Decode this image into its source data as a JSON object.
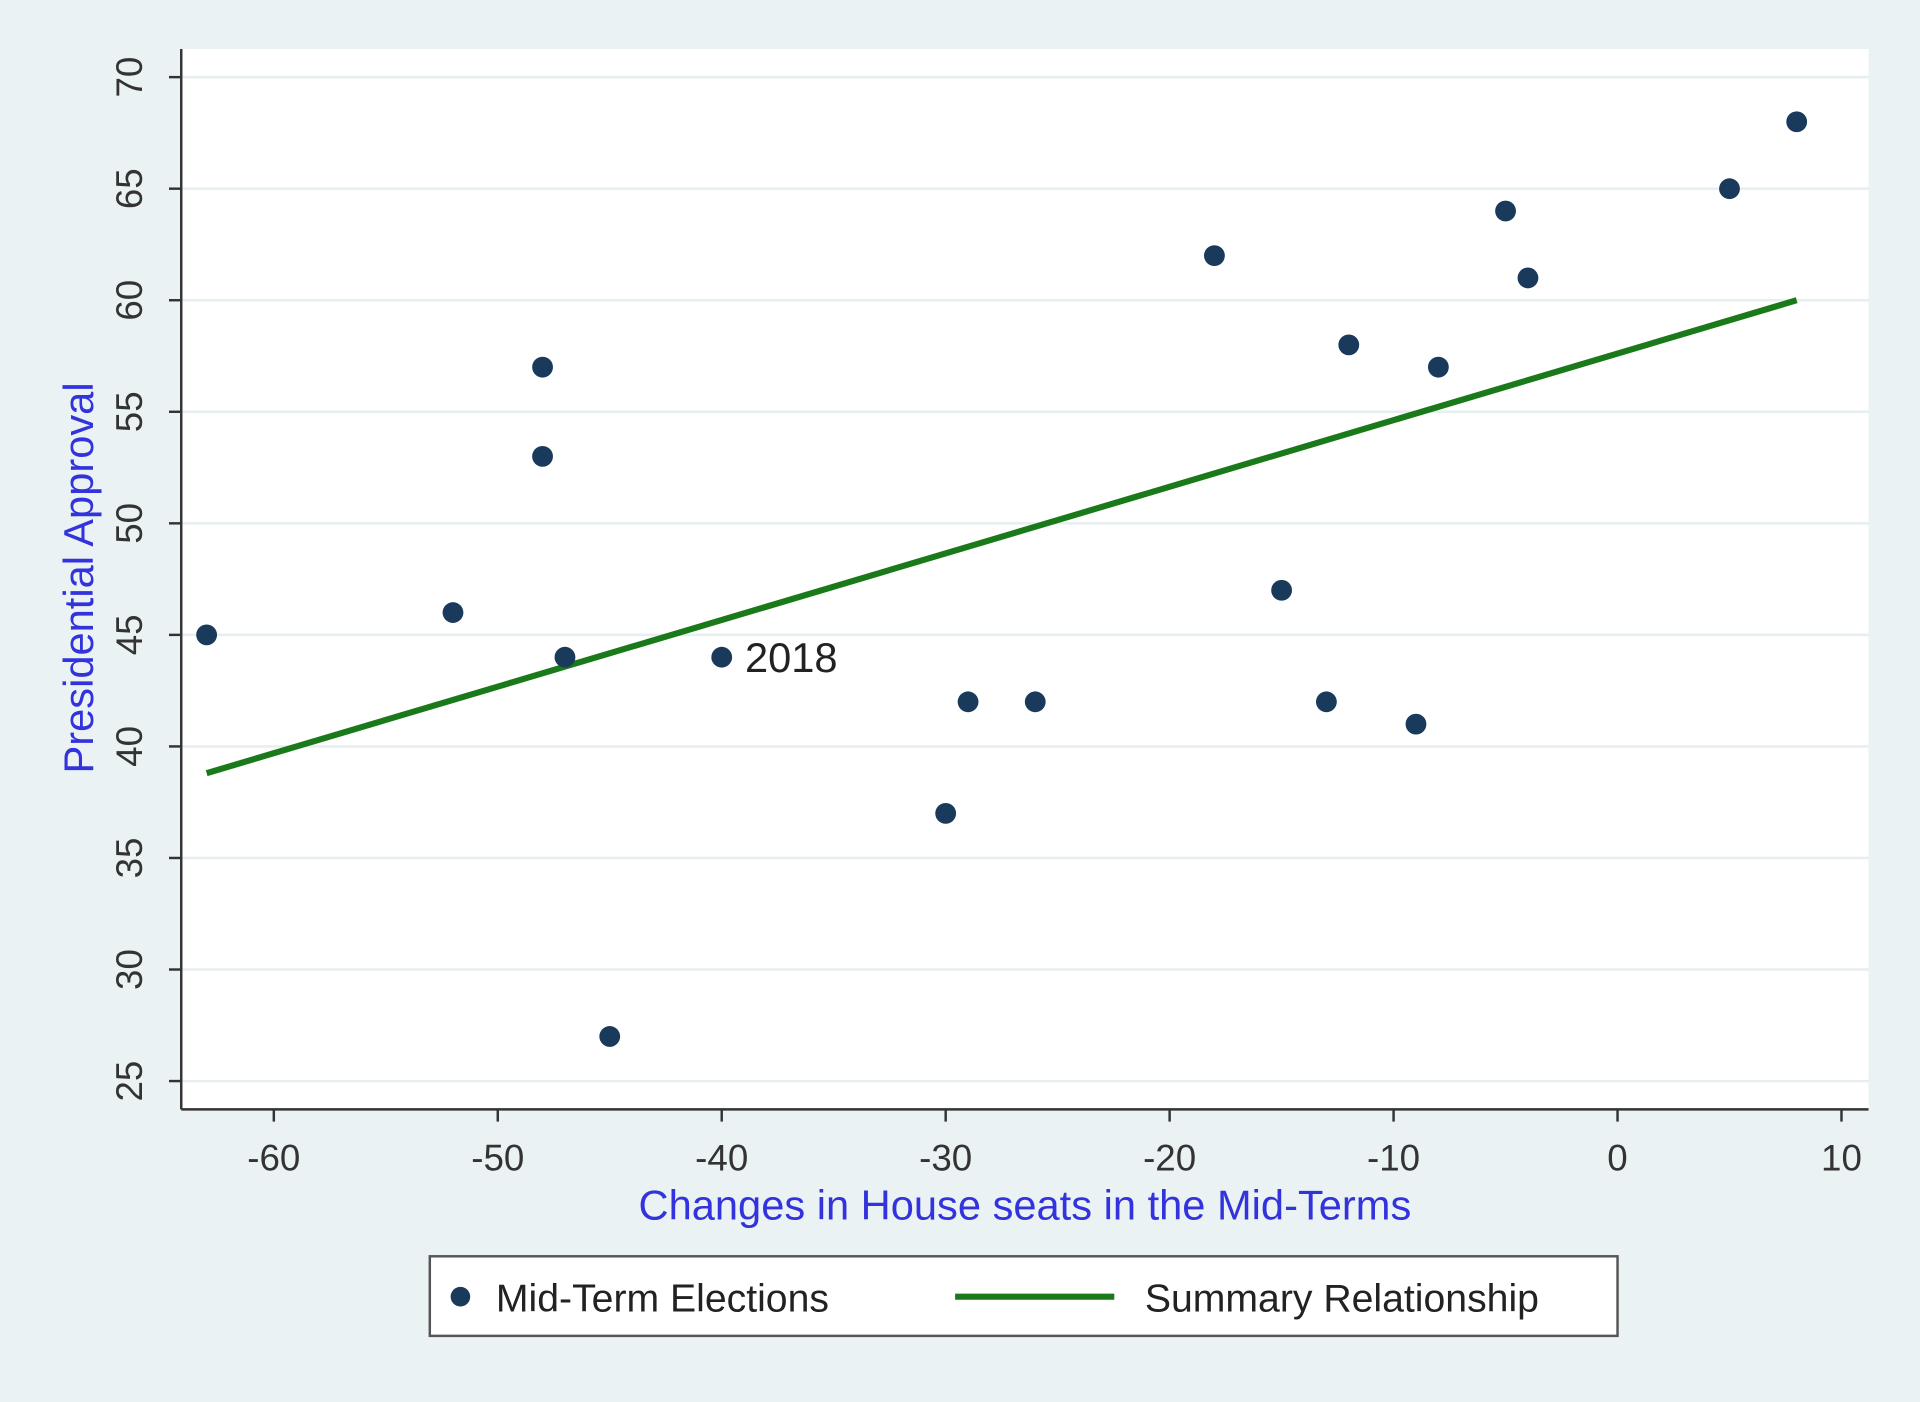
{
  "chart_data": {
    "type": "scatter",
    "title": "",
    "xlabel": "Changes in House seats in the Mid-Terms",
    "ylabel": "Presidential Approval",
    "xlim": [
      -64,
      11.5
    ],
    "ylim": [
      23.5,
      71.5
    ],
    "xticks": [
      -60,
      -50,
      -40,
      -30,
      -20,
      -10,
      0,
      10
    ],
    "yticks": [
      25,
      30,
      35,
      40,
      45,
      50,
      55,
      60,
      65,
      70
    ],
    "grid": true,
    "legend_position": "bottom",
    "colors": {
      "points": "#1a3a5c",
      "line": "#1a7a1a",
      "axis_title": "#3333dd",
      "background": "#eaf2f3",
      "plot_bg": "#ffffff"
    },
    "series": [
      {
        "name": "Mid-Term Elections",
        "type": "scatter",
        "points": [
          {
            "x": -63,
            "y": 45
          },
          {
            "x": -52,
            "y": 46
          },
          {
            "x": -48,
            "y": 57
          },
          {
            "x": -48,
            "y": 53
          },
          {
            "x": -47,
            "y": 44
          },
          {
            "x": -45,
            "y": 27
          },
          {
            "x": -40,
            "y": 44,
            "label": "2018"
          },
          {
            "x": -30,
            "y": 37
          },
          {
            "x": -29,
            "y": 42
          },
          {
            "x": -26,
            "y": 42
          },
          {
            "x": -18,
            "y": 62
          },
          {
            "x": -15,
            "y": 47
          },
          {
            "x": -13,
            "y": 42
          },
          {
            "x": -12,
            "y": 58
          },
          {
            "x": -9,
            "y": 41
          },
          {
            "x": -8,
            "y": 57
          },
          {
            "x": -5,
            "y": 64
          },
          {
            "x": -4,
            "y": 61
          },
          {
            "x": 5,
            "y": 65
          },
          {
            "x": 8,
            "y": 68
          }
        ]
      },
      {
        "name": "Summary Relationship",
        "type": "line",
        "points": [
          {
            "x": -63,
            "y": 38.8
          },
          {
            "x": 8,
            "y": 60
          }
        ]
      }
    ]
  }
}
